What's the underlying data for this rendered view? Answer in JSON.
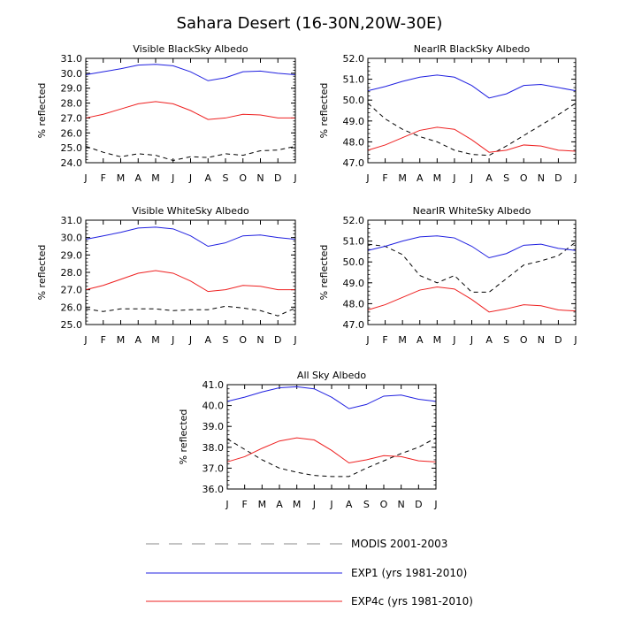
{
  "figure": {
    "title": "Sahara Desert (16-30N,20W-30E)"
  },
  "months": [
    "J",
    "F",
    "M",
    "A",
    "M",
    "J",
    "J",
    "A",
    "S",
    "O",
    "N",
    "D",
    "J"
  ],
  "legend": {
    "items": [
      {
        "label": "MODIS 2001-2003",
        "color": "#000000",
        "dash": true
      },
      {
        "label": "EXP1 (yrs 1981-2010)",
        "color": "#2020e0",
        "dash": false
      },
      {
        "label": "EXP4c (yrs 1981-2010)",
        "color": "#ee2020",
        "dash": false
      }
    ]
  },
  "chart_data": [
    {
      "type": "line",
      "title": "Visible BlackSky Albedo",
      "ylabel": "% reflected",
      "ylim": [
        24.0,
        31.0
      ],
      "yticks": [
        24.0,
        25.0,
        26.0,
        27.0,
        28.0,
        29.0,
        30.0,
        31.0
      ],
      "x": [
        "J",
        "F",
        "M",
        "A",
        "M",
        "J",
        "J",
        "A",
        "S",
        "O",
        "N",
        "D",
        "J"
      ],
      "series": [
        {
          "name": "MODIS 2001-2003",
          "color": "#000000",
          "dash": true,
          "values": [
            25.1,
            24.7,
            24.4,
            24.6,
            24.5,
            24.15,
            24.4,
            24.35,
            24.6,
            24.5,
            24.8,
            24.85,
            25.1
          ]
        },
        {
          "name": "EXP1 (yrs 1981-2010)",
          "color": "#2020e0",
          "dash": false,
          "values": [
            29.9,
            30.1,
            30.3,
            30.55,
            30.6,
            30.5,
            30.1,
            29.5,
            29.7,
            30.1,
            30.15,
            30.0,
            29.9
          ]
        },
        {
          "name": "EXP4c (yrs 1981-2010)",
          "color": "#ee2020",
          "dash": false,
          "values": [
            27.0,
            27.25,
            27.6,
            27.95,
            28.1,
            27.95,
            27.5,
            26.9,
            27.0,
            27.25,
            27.2,
            27.0,
            27.0
          ]
        }
      ]
    },
    {
      "type": "line",
      "title": "NearIR BlackSky Albedo",
      "ylabel": "% reflected",
      "ylim": [
        47.0,
        52.0
      ],
      "yticks": [
        47.0,
        48.0,
        49.0,
        50.0,
        51.0,
        52.0
      ],
      "x": [
        "J",
        "F",
        "M",
        "A",
        "M",
        "J",
        "J",
        "A",
        "S",
        "O",
        "N",
        "D",
        "J"
      ],
      "series": [
        {
          "name": "MODIS 2001-2003",
          "color": "#000000",
          "dash": true,
          "values": [
            49.85,
            49.1,
            48.6,
            48.25,
            48.0,
            47.6,
            47.4,
            47.35,
            47.8,
            48.3,
            48.8,
            49.3,
            49.85
          ]
        },
        {
          "name": "EXP1 (yrs 1981-2010)",
          "color": "#2020e0",
          "dash": false,
          "values": [
            50.45,
            50.65,
            50.9,
            51.1,
            51.2,
            51.1,
            50.7,
            50.1,
            50.3,
            50.7,
            50.75,
            50.6,
            50.45
          ]
        },
        {
          "name": "EXP4c (yrs 1981-2010)",
          "color": "#ee2020",
          "dash": false,
          "values": [
            47.6,
            47.85,
            48.2,
            48.55,
            48.7,
            48.6,
            48.1,
            47.5,
            47.6,
            47.85,
            47.8,
            47.6,
            47.55
          ]
        }
      ]
    },
    {
      "type": "line",
      "title": "Visible WhiteSky Albedo",
      "ylabel": "% reflected",
      "ylim": [
        25.0,
        31.0
      ],
      "yticks": [
        25.0,
        26.0,
        27.0,
        28.0,
        29.0,
        30.0,
        31.0
      ],
      "x": [
        "J",
        "F",
        "M",
        "A",
        "M",
        "J",
        "J",
        "A",
        "S",
        "O",
        "N",
        "D",
        "J"
      ],
      "series": [
        {
          "name": "MODIS 2001-2003",
          "color": "#000000",
          "dash": true,
          "values": [
            25.9,
            25.75,
            25.9,
            25.9,
            25.9,
            25.8,
            25.85,
            25.85,
            26.05,
            25.95,
            25.8,
            25.5,
            25.95
          ]
        },
        {
          "name": "EXP1 (yrs 1981-2010)",
          "color": "#2020e0",
          "dash": false,
          "values": [
            29.9,
            30.1,
            30.3,
            30.55,
            30.6,
            30.5,
            30.1,
            29.5,
            29.7,
            30.1,
            30.15,
            30.0,
            29.9
          ]
        },
        {
          "name": "EXP4c (yrs 1981-2010)",
          "color": "#ee2020",
          "dash": false,
          "values": [
            27.0,
            27.25,
            27.6,
            27.95,
            28.1,
            27.95,
            27.5,
            26.9,
            27.0,
            27.25,
            27.2,
            27.0,
            27.0
          ]
        }
      ]
    },
    {
      "type": "line",
      "title": "NearIR WhiteSky Albedo",
      "ylabel": "% reflected",
      "ylim": [
        47.0,
        52.0
      ],
      "yticks": [
        47.0,
        48.0,
        49.0,
        50.0,
        51.0,
        52.0
      ],
      "x": [
        "J",
        "F",
        "M",
        "A",
        "M",
        "J",
        "J",
        "A",
        "S",
        "O",
        "N",
        "D",
        "J"
      ],
      "series": [
        {
          "name": "MODIS 2001-2003",
          "color": "#000000",
          "dash": true,
          "values": [
            50.85,
            50.75,
            50.35,
            49.35,
            49.0,
            49.35,
            48.55,
            48.55,
            49.2,
            49.85,
            50.05,
            50.3,
            50.95
          ]
        },
        {
          "name": "EXP1 (yrs 1981-2010)",
          "color": "#2020e0",
          "dash": false,
          "values": [
            50.55,
            50.75,
            51.0,
            51.2,
            51.25,
            51.15,
            50.75,
            50.2,
            50.4,
            50.8,
            50.85,
            50.65,
            50.55
          ]
        },
        {
          "name": "EXP4c (yrs 1981-2010)",
          "color": "#ee2020",
          "dash": false,
          "values": [
            47.7,
            47.95,
            48.3,
            48.65,
            48.8,
            48.7,
            48.2,
            47.6,
            47.75,
            47.95,
            47.9,
            47.7,
            47.65
          ]
        }
      ]
    },
    {
      "type": "line",
      "title": "All Sky Albedo",
      "ylabel": "% reflected",
      "ylim": [
        36.0,
        41.0
      ],
      "yticks": [
        36.0,
        37.0,
        38.0,
        39.0,
        40.0,
        41.0
      ],
      "x": [
        "J",
        "F",
        "M",
        "A",
        "M",
        "J",
        "J",
        "A",
        "S",
        "O",
        "N",
        "D",
        "J"
      ],
      "series": [
        {
          "name": "MODIS 2001-2003",
          "color": "#000000",
          "dash": true,
          "values": [
            38.4,
            37.9,
            37.4,
            37.0,
            36.8,
            36.65,
            36.6,
            36.6,
            37.0,
            37.35,
            37.7,
            38.0,
            38.45
          ]
        },
        {
          "name": "EXP1 (yrs 1981-2010)",
          "color": "#2020e0",
          "dash": false,
          "values": [
            40.2,
            40.4,
            40.65,
            40.85,
            40.9,
            40.8,
            40.4,
            39.85,
            40.05,
            40.45,
            40.5,
            40.3,
            40.2
          ]
        },
        {
          "name": "EXP4c (yrs 1981-2010)",
          "color": "#ee2020",
          "dash": false,
          "values": [
            37.3,
            37.55,
            37.95,
            38.3,
            38.45,
            38.35,
            37.85,
            37.25,
            37.4,
            37.6,
            37.55,
            37.35,
            37.3
          ]
        }
      ]
    }
  ]
}
